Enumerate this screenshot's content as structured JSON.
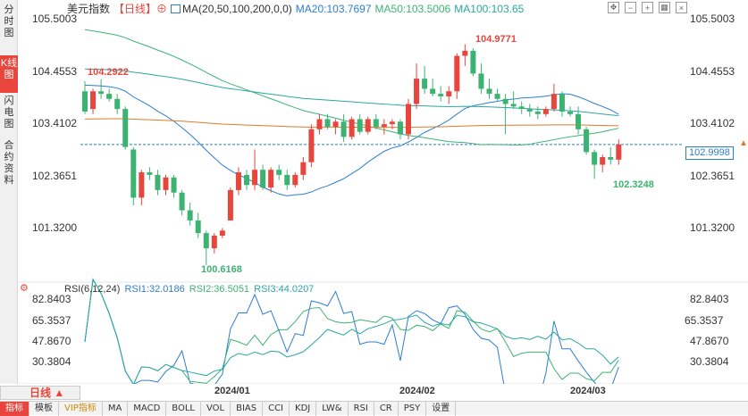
{
  "sidebar": {
    "tabs": [
      {
        "label": "分时图",
        "active": false
      },
      {
        "label": "K线图",
        "active": true
      },
      {
        "label": "闪电图",
        "active": false
      },
      {
        "label": "合约资料",
        "active": false
      }
    ]
  },
  "header": {
    "symbol": "美元指数",
    "period": "【日线】",
    "plus": "⊕",
    "ma_title": "MA(20,50,100,200,0,0)",
    "ma20": "MA20:103.7697",
    "ma50": "MA50:103.5006",
    "ma100": "MA100:103.65"
  },
  "price_axis": {
    "left": [
      "105.5003",
      "104.4553",
      "103.4102",
      "102.3651",
      "101.3200"
    ],
    "right": [
      "105.5003",
      "104.4553",
      "103.4102",
      "102.3651",
      "101.3200"
    ],
    "current": "102.9998"
  },
  "annotations": {
    "high_left": "104.2922",
    "low": "100.6168",
    "high": "104.9771",
    "low_recent": "102.3248"
  },
  "rsi": {
    "title": "RSI(6,12,24)",
    "rsi1": "RSI1:32.0186",
    "rsi2": "RSI2:36.5051",
    "rsi3": "RSI3:44.0207",
    "axis": [
      "82.8403",
      "65.3537",
      "47.8670",
      "30.3804"
    ]
  },
  "dates": [
    "2024/01",
    "2024/02",
    "2024/03"
  ],
  "period_selector": "日线 ▲",
  "bottom_tabs": [
    {
      "label": "指标",
      "active": true
    },
    {
      "label": "模板",
      "active": false
    },
    {
      "label": "VIP指标",
      "active": false,
      "vip": true
    },
    {
      "label": "MA",
      "active": false
    },
    {
      "label": "MACD",
      "active": false
    },
    {
      "label": "BOLL",
      "active": false
    },
    {
      "label": "VOL",
      "active": false
    },
    {
      "label": "BIAS",
      "active": false
    },
    {
      "label": "CCI",
      "active": false
    },
    {
      "label": "KDJ",
      "active": false
    },
    {
      "label": "LW&",
      "active": false
    },
    {
      "label": "RSI",
      "active": false
    },
    {
      "label": "CR",
      "active": false
    },
    {
      "label": "PSY",
      "active": false
    },
    {
      "label": "设置",
      "active": false
    }
  ],
  "colors": {
    "up": "#e8453c",
    "down": "#3cb371",
    "ma20": "#2d7dd2",
    "ma50": "#3cb371",
    "ma100": "#2aa7a0",
    "ma200": "#e07b2a",
    "current": "#2d7dd2"
  },
  "chart_data": {
    "type": "candlestick",
    "ylim": [
      100.6,
      105.5
    ],
    "candles": [
      [
        104.05,
        104.25,
        103.6,
        103.65
      ],
      [
        103.7,
        104.1,
        103.6,
        104.05
      ],
      [
        104.05,
        104.29,
        103.9,
        104.0
      ],
      [
        104.0,
        104.1,
        103.85,
        103.9
      ],
      [
        103.9,
        104.0,
        103.6,
        103.7
      ],
      [
        103.7,
        103.75,
        102.9,
        102.95
      ],
      [
        102.9,
        102.95,
        101.8,
        101.95
      ],
      [
        101.95,
        102.5,
        101.8,
        102.45
      ],
      [
        102.45,
        102.55,
        102.3,
        102.4
      ],
      [
        102.4,
        102.5,
        102.0,
        102.1
      ],
      [
        102.1,
        102.4,
        102.0,
        102.35
      ],
      [
        102.35,
        102.4,
        101.95,
        102.05
      ],
      [
        102.05,
        102.1,
        101.6,
        101.7
      ],
      [
        101.7,
        101.85,
        101.4,
        101.5
      ],
      [
        101.5,
        101.65,
        101.15,
        101.25
      ],
      [
        101.25,
        101.3,
        100.62,
        100.95
      ],
      [
        100.95,
        101.25,
        100.85,
        101.2
      ],
      [
        101.2,
        101.35,
        101.15,
        101.3
      ],
      [
        101.5,
        102.15,
        101.5,
        102.1
      ],
      [
        102.1,
        102.55,
        102.0,
        102.45
      ],
      [
        102.4,
        102.5,
        102.1,
        102.2
      ],
      [
        102.2,
        102.9,
        102.1,
        102.5
      ],
      [
        102.5,
        102.6,
        102.1,
        102.15
      ],
      [
        102.15,
        102.55,
        102.05,
        102.5
      ],
      [
        102.5,
        102.6,
        102.3,
        102.4
      ],
      [
        102.4,
        102.5,
        102.1,
        102.2
      ],
      [
        102.2,
        102.45,
        102.15,
        102.4
      ],
      [
        102.4,
        102.75,
        102.3,
        102.65
      ],
      [
        102.65,
        103.4,
        102.55,
        103.3
      ],
      [
        103.3,
        103.6,
        103.2,
        103.5
      ],
      [
        103.5,
        103.6,
        103.3,
        103.35
      ],
      [
        103.35,
        103.5,
        103.2,
        103.45
      ],
      [
        103.45,
        103.6,
        103.05,
        103.15
      ],
      [
        103.15,
        103.55,
        103.1,
        103.5
      ],
      [
        103.5,
        103.6,
        103.2,
        103.25
      ],
      [
        103.25,
        103.55,
        103.2,
        103.5
      ],
      [
        103.5,
        103.6,
        103.3,
        103.35
      ],
      [
        103.35,
        103.5,
        103.2,
        103.4
      ],
      [
        103.4,
        103.5,
        103.3,
        103.45
      ],
      [
        103.45,
        103.5,
        103.1,
        103.2
      ],
      [
        103.2,
        103.9,
        103.1,
        103.8
      ],
      [
        103.8,
        104.6,
        103.7,
        104.3
      ],
      [
        104.3,
        104.55,
        104.0,
        104.1
      ],
      [
        104.1,
        104.3,
        103.95,
        104.0
      ],
      [
        104.0,
        104.15,
        103.85,
        103.95
      ],
      [
        103.95,
        104.15,
        103.8,
        104.05
      ],
      [
        104.05,
        104.8,
        103.9,
        104.75
      ],
      [
        104.75,
        104.98,
        104.55,
        104.85
      ],
      [
        104.85,
        104.9,
        104.35,
        104.4
      ],
      [
        104.4,
        104.6,
        104.0,
        104.1
      ],
      [
        104.1,
        104.3,
        103.9,
        104.0
      ],
      [
        104.0,
        104.1,
        103.85,
        103.9
      ],
      [
        103.9,
        104.0,
        103.2,
        103.8
      ],
      [
        103.8,
        104.05,
        103.7,
        103.75
      ],
      [
        103.75,
        103.85,
        103.6,
        103.7
      ],
      [
        103.7,
        103.8,
        103.55,
        103.65
      ],
      [
        103.65,
        103.75,
        103.5,
        103.6
      ],
      [
        103.6,
        103.75,
        103.55,
        103.7
      ],
      [
        103.7,
        104.2,
        103.65,
        104.0
      ],
      [
        104.0,
        104.05,
        103.55,
        103.65
      ],
      [
        103.65,
        103.75,
        103.55,
        103.6
      ],
      [
        103.6,
        103.75,
        103.2,
        103.3
      ],
      [
        103.3,
        103.35,
        102.8,
        102.85
      ],
      [
        102.85,
        102.9,
        102.32,
        102.6
      ],
      [
        102.6,
        102.8,
        102.45,
        102.75
      ],
      [
        102.75,
        102.95,
        102.6,
        102.7
      ],
      [
        102.7,
        103.1,
        102.6,
        103.0
      ]
    ],
    "rsi_ylim": [
      20,
      85
    ]
  }
}
